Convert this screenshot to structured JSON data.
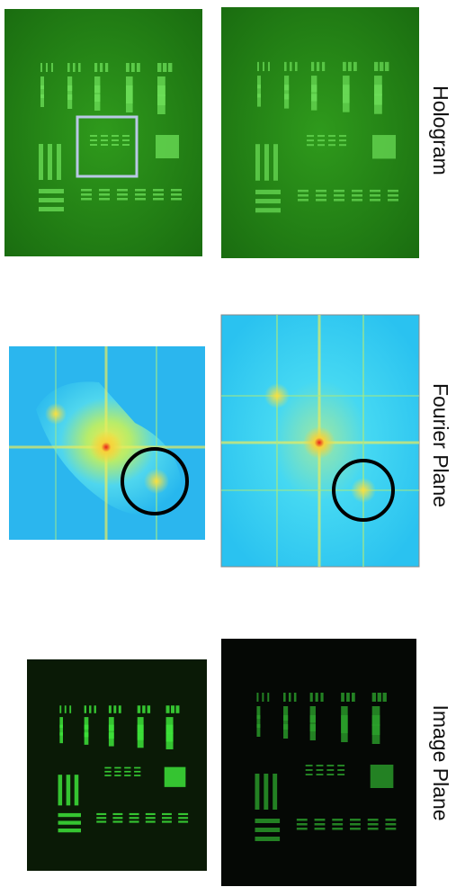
{
  "labels": {
    "hologram": "Hologram",
    "fourier": "Fourier Plane",
    "image": "Image Plane"
  }
}
